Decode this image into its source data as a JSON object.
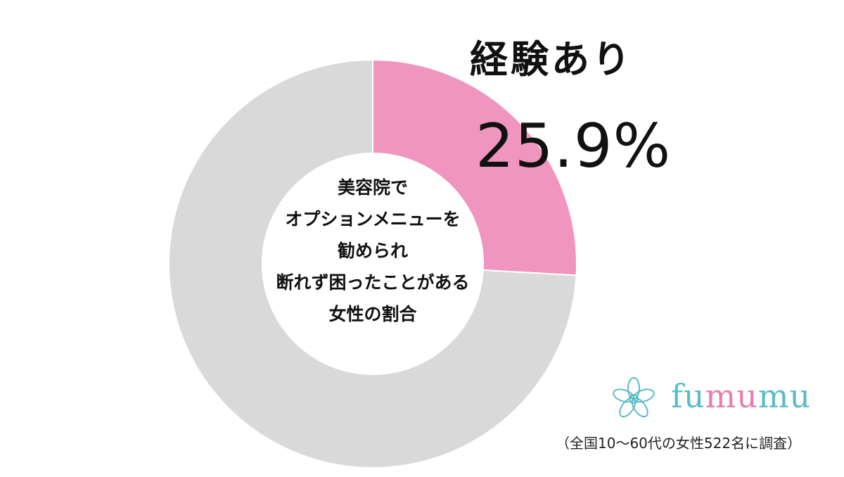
{
  "chart_data": {
    "type": "pie",
    "title": "",
    "center_label_lines": [
      "美容院で",
      "オプションメニューを",
      "勧められ",
      "断れず困ったことがある",
      "女性の割合"
    ],
    "slices": [
      {
        "label": "経験あり",
        "value": 25.9,
        "value_text": "25.9%",
        "color": "#f095bf"
      },
      {
        "label": "",
        "value": 74.1,
        "color": "#d9d9d9"
      }
    ],
    "start_angle_deg": 0,
    "direction": "clockwise",
    "donut": true,
    "legend": "none"
  },
  "branding": {
    "name_part1": "fu",
    "name_part2": "mu",
    "name_part3": "mu",
    "icon": "flower-logo-icon",
    "colors": {
      "primary": "#5bbcc6",
      "secondary": "#e77fae"
    }
  },
  "survey_note": "（全国10〜60代の女性522名に調査）"
}
